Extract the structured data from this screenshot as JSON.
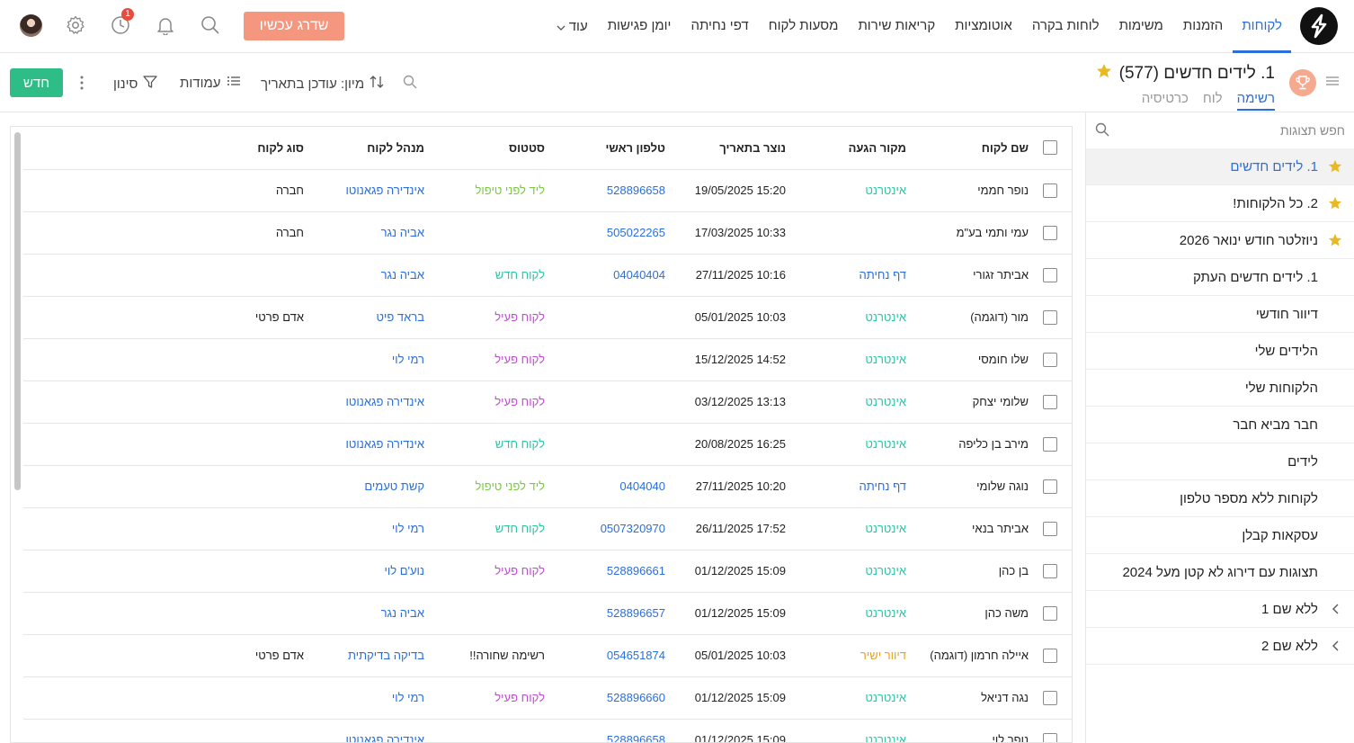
{
  "nav": {
    "items": [
      "לקוחות",
      "הזמנות",
      "משימות",
      "לוחות בקרה",
      "אוטומציות",
      "קריאות שירות",
      "מסעות לקוח",
      "דפי נחיתה",
      "יומן פגישות"
    ],
    "active_index": 0,
    "more_label": "עוד",
    "upgrade_label": "שדרג עכשיו",
    "notification_count": "1"
  },
  "view": {
    "title": "1. לידים חדשים (577)",
    "tabs": [
      "רשימה",
      "לוח",
      "כרטיסיה"
    ],
    "active_tab": 0
  },
  "toolbar": {
    "sort_label": "מיון: עודכן בתאריך",
    "columns_label": "עמודות",
    "filter_label": "סינון",
    "new_label": "חדש"
  },
  "sidebar": {
    "search_placeholder": "חפש תצוגות",
    "views": [
      {
        "label": "1. לידים חדשים",
        "starred": true,
        "selected": true,
        "expandable": false
      },
      {
        "label": "2. כל הלקוחות!",
        "starred": true,
        "selected": false,
        "expandable": false
      },
      {
        "label": "ניוזלטר חודש ינואר 2026",
        "starred": true,
        "selected": false,
        "expandable": false
      },
      {
        "label": "1. לידים חדשים העתק",
        "starred": false,
        "selected": false,
        "expandable": false
      },
      {
        "label": "דיוור חודשי",
        "starred": false,
        "selected": false,
        "expandable": false
      },
      {
        "label": "הלידים שלי",
        "starred": false,
        "selected": false,
        "expandable": false
      },
      {
        "label": "הלקוחות שלי",
        "starred": false,
        "selected": false,
        "expandable": false
      },
      {
        "label": "חבר מביא חבר",
        "starred": false,
        "selected": false,
        "expandable": false
      },
      {
        "label": "לידים",
        "starred": false,
        "selected": false,
        "expandable": false
      },
      {
        "label": "לקוחות ללא מספר טלפון",
        "starred": false,
        "selected": false,
        "expandable": false
      },
      {
        "label": "עסקאות קבלן",
        "starred": false,
        "selected": false,
        "expandable": false
      },
      {
        "label": "תצוגות עם דירוג לא קטן מעל 2024",
        "starred": false,
        "selected": false,
        "expandable": false
      },
      {
        "label": "ללא שם 1",
        "starred": false,
        "selected": false,
        "expandable": true
      },
      {
        "label": "ללא שם 2",
        "starred": false,
        "selected": false,
        "expandable": true
      }
    ]
  },
  "table": {
    "headers": [
      "שם לקוח",
      "מקור הגעה",
      "נוצר בתאריך",
      "טלפון ראשי",
      "סטטוס",
      "מנהל לקוח",
      "סוג לקוח"
    ],
    "rows": [
      {
        "name": "נופר חממי",
        "source": "אינטרנט",
        "source_kind": "internet",
        "created": "15:20 19/05/2025",
        "phone": "528896658",
        "status": "ליד לפני טיפול",
        "status_kind": "pre",
        "manager": "אינדירה פגאנוטו",
        "type": "חברה"
      },
      {
        "name": "עמי ותמי בע\"מ",
        "source": "",
        "source_kind": "",
        "created": "10:33 17/03/2025",
        "phone": "505022265",
        "status": "",
        "status_kind": "",
        "manager": "אביה נגר",
        "type": "חברה"
      },
      {
        "name": "אביתר זגורי",
        "source": "דף נחיתה",
        "source_kind": "landing",
        "created": "10:16 27/11/2025",
        "phone": "04040404",
        "status": "לקוח חדש",
        "status_kind": "new",
        "manager": "אביה נגר",
        "type": ""
      },
      {
        "name": "מור (דוגמה)",
        "source": "אינטרנט",
        "source_kind": "internet",
        "created": "10:03 05/01/2025",
        "phone": "",
        "status": "לקוח פעיל",
        "status_kind": "active",
        "manager": "בראד פיט",
        "type": "אדם פרטי"
      },
      {
        "name": "שלו חומסי",
        "source": "אינטרנט",
        "source_kind": "internet",
        "created": "14:52 15/12/2025",
        "phone": "",
        "status": "לקוח פעיל",
        "status_kind": "active",
        "manager": "רמי לוי",
        "type": ""
      },
      {
        "name": "שלומי יצחק",
        "source": "אינטרנט",
        "source_kind": "internet",
        "created": "13:13 03/12/2025",
        "phone": "",
        "status": "לקוח פעיל",
        "status_kind": "active",
        "manager": "אינדירה פגאנוטו",
        "type": ""
      },
      {
        "name": "מירב בן כליפה",
        "source": "אינטרנט",
        "source_kind": "internet",
        "created": "16:25 20/08/2025",
        "phone": "",
        "status": "לקוח חדש",
        "status_kind": "new",
        "manager": "אינדירה פגאנוטו",
        "type": ""
      },
      {
        "name": "נוגה שלומי",
        "source": "דף נחיתה",
        "source_kind": "landing",
        "created": "10:20 27/11/2025",
        "phone": "0404040",
        "status": "ליד לפני טיפול",
        "status_kind": "pre",
        "manager": "קשת טעמים",
        "type": ""
      },
      {
        "name": "אביתר בנאי",
        "source": "אינטרנט",
        "source_kind": "internet",
        "created": "17:52 26/11/2025",
        "phone": "0507320970",
        "status": "לקוח חדש",
        "status_kind": "new",
        "manager": "רמי לוי",
        "type": ""
      },
      {
        "name": "בן כהן",
        "source": "אינטרנט",
        "source_kind": "internet",
        "created": "15:09 01/12/2025",
        "phone": "528896661",
        "status": "לקוח פעיל",
        "status_kind": "active",
        "manager": "נוע'ם לוי",
        "type": ""
      },
      {
        "name": "משה כהן",
        "source": "אינטרנט",
        "source_kind": "internet",
        "created": "15:09 01/12/2025",
        "phone": "528896657",
        "status": "",
        "status_kind": "",
        "manager": "אביה נגר",
        "type": ""
      },
      {
        "name": "איילה חרמון (דוגמה)",
        "source": "דיוור ישיר",
        "source_kind": "direct",
        "created": "10:03 05/01/2025",
        "phone": "054651874",
        "status": "רשימה שחורה!!",
        "status_kind": "black",
        "manager": "בדיקה בדיקתית",
        "type": "אדם פרטי"
      },
      {
        "name": "נגה דניאל",
        "source": "אינטרנט",
        "source_kind": "internet",
        "created": "15:09 01/12/2025",
        "phone": "528896660",
        "status": "לקוח פעיל",
        "status_kind": "active",
        "manager": "רמי לוי",
        "type": ""
      },
      {
        "name": "נופר לוי",
        "source": "אינטרנט",
        "source_kind": "internet",
        "created": "15:09 01/12/2025",
        "phone": "528896658",
        "status": "",
        "status_kind": "",
        "manager": "אינדירה פגאנוטו",
        "type": ""
      }
    ]
  },
  "colors": {
    "accent": "#2a6fdb",
    "upgrade": "#f5967f",
    "new_button": "#2ebd86",
    "star": "#e8b923",
    "source_internet": "#2ec4a6",
    "status_active": "#c24bd6",
    "status_pre": "#7ac943"
  },
  "icons": [
    "logo-icon",
    "search-icon",
    "bell-icon",
    "clock-icon",
    "gear-icon",
    "menu-icon",
    "trophy-icon",
    "star-icon",
    "sort-icon",
    "columns-icon",
    "filter-icon",
    "kebab-icon",
    "chevron-left-icon",
    "chevron-down-icon"
  ]
}
